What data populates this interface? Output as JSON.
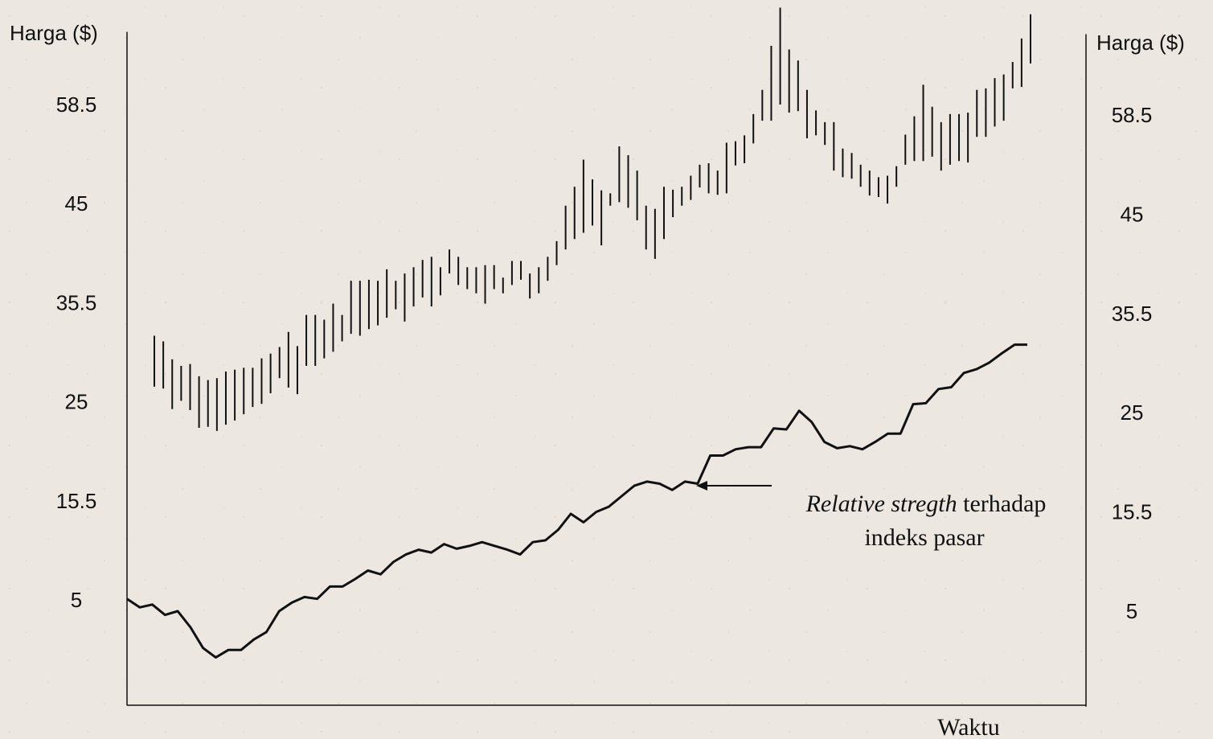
{
  "chart_data": {
    "type": "hilo",
    "ylabel": "Harga ($)",
    "y2label": "Harga ($)",
    "xlabel": "Waktu",
    "ylim": [
      -6.2,
      68.4
    ],
    "yticks": [
      5,
      15.5,
      25,
      35.5,
      45,
      58.5
    ],
    "y2lim": [
      -5.1,
      69.5
    ],
    "y2ticks": [
      5,
      15.5,
      25,
      35.5,
      45,
      58.5
    ],
    "annotation": {
      "italic": "Relative stregth",
      "text": " terhadap",
      "line2": "indeks pasar"
    },
    "series": [
      {
        "type": "hilo",
        "color": "#111111",
        "high": [
          32.0,
          31.4,
          29.5,
          28.8,
          29.0,
          27.7,
          27.3,
          27.5,
          28.2,
          28.4,
          28.6,
          28.6,
          29.6,
          30.1,
          30.8,
          32.4,
          30.9,
          34.2,
          34.2,
          33.7,
          35.4,
          34.2,
          37.6,
          37.6,
          37.7,
          37.6,
          38.7,
          37.6,
          38.3,
          38.9,
          39.6,
          39.9,
          38.9,
          40.6,
          39.9,
          38.9,
          38.9,
          39.1,
          39.1,
          37.9,
          39.5,
          39.5,
          38.3,
          38.9,
          39.9,
          41.4,
          44.8,
          47.3,
          51.0,
          48.3,
          46.8,
          46.4,
          52.8,
          51.6,
          49.5,
          44.8,
          44.5,
          47.3,
          46.9,
          47.3,
          48.8,
          50.3,
          50.5,
          49.5,
          53.3,
          53.5,
          54.3,
          57.2,
          60.5,
          66.5,
          71.7,
          66.0,
          64.5,
          60.5,
          57.7,
          56.1,
          56.1,
          52.5,
          51.9,
          50.3,
          49.5,
          48.6,
          48.8,
          50.1,
          54.4,
          56.9,
          61.2,
          58.2,
          56.1,
          57.2,
          57.2,
          57.4,
          60.5,
          60.7,
          62.1,
          62.6,
          64.3,
          67.5,
          70.8
        ],
        "low": [
          26.6,
          26.4,
          24.3,
          25.1,
          24.2,
          22.5,
          22.6,
          22.2,
          22.8,
          23.2,
          23.8,
          24.5,
          24.8,
          25.9,
          27.5,
          26.5,
          25.8,
          28.8,
          28.8,
          29.6,
          30.3,
          31.4,
          32.2,
          32.0,
          32.7,
          33.1,
          33.9,
          34.8,
          33.5,
          35.1,
          36.0,
          35.1,
          36.2,
          38.3,
          37.2,
          36.8,
          36.4,
          35.4,
          36.8,
          36.4,
          37.2,
          37.7,
          35.9,
          36.4,
          37.6,
          39.1,
          40.6,
          41.6,
          42.2,
          42.9,
          41.0,
          44.8,
          45.2,
          44.6,
          43.4,
          40.6,
          39.7,
          41.6,
          43.7,
          44.8,
          45.5,
          47.2,
          46.4,
          46.2,
          46.4,
          50.2,
          50.5,
          53.2,
          56.3,
          56.3,
          58.5,
          57.4,
          57.6,
          53.9,
          54.3,
          53.0,
          49.5,
          48.6,
          48.4,
          47.3,
          46.1,
          45.9,
          45.0,
          47.3,
          50.3,
          50.8,
          50.8,
          51.4,
          49.5,
          50.3,
          50.8,
          50.6,
          54.1,
          54.1,
          55.5,
          56.3,
          60.7,
          60.9,
          64.1
        ]
      },
      {
        "type": "line",
        "axis": "y2",
        "color": "#111111",
        "values": [
          6.3,
          5.4,
          5.7,
          4.6,
          5.0,
          3.3,
          1.1,
          0.1,
          0.9,
          0.9,
          2.0,
          2.8,
          5.0,
          5.9,
          6.5,
          6.3,
          7.6,
          7.6,
          8.4,
          9.3,
          8.9,
          10.2,
          11.0,
          11.5,
          11.2,
          12.1,
          11.6,
          11.9,
          12.3,
          11.9,
          11.5,
          11.0,
          12.3,
          12.5,
          13.6,
          15.3,
          14.4,
          15.5,
          16.0,
          17.0,
          18.0,
          18.4,
          18.2,
          17.6,
          18.4,
          18.2,
          20.9,
          20.9,
          21.5,
          21.7,
          21.7,
          23.5,
          23.4,
          25.2,
          24.1,
          22.2,
          21.6,
          21.8,
          21.5,
          22.2,
          23.0,
          23.0,
          25.9,
          26.0,
          27.5,
          27.7,
          29.2,
          29.6,
          30.3,
          31.3,
          32.2,
          32.2
        ]
      }
    ]
  }
}
